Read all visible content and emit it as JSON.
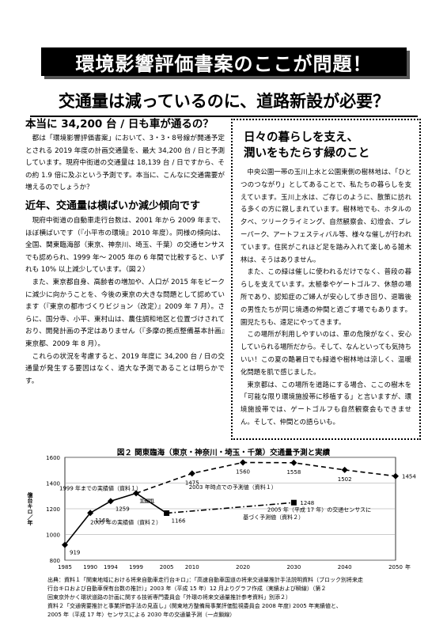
{
  "banner": "環境影響評価書案のここが問題！",
  "headline": "交通量は減っているのに、道路新設が必要？",
  "left": {
    "h1": "本当に 34,200 台 / 日も車が通るの？",
    "p1": "都は「環境影響評価書案」において、3・3・8号線が開通予定とされる 2019 年度の計画交通量を、最大 34,200 台 / 日と予測しています。現府中街道の交通量は 18,139 台 / 日ですから、その約 1.9 倍に及ぶという予測です。本当に、こんなに交通需要が増えるのでしょうか？",
    "h2": "近年、交通量は横ばいか減少傾向です",
    "p2": "現府中街道の自動車走行台数は、2001 年から 2009 年まで、ほぼ横ばいです（『小平市の環境』2010 年度）。同様の傾向は、全国、関東臨海部（東京、神奈川、埼玉、千葉）の交通センサスでも認められ、1999 年〜 2005 年の 6 年間で比較すると、いずれも 10% 以上減少しています。（図２）",
    "p3": "また、東京都自身、高齢者の増加や、人口が 2015 年をピークに減少に向かうことを、今後の東京の大きな問題として認めています（『東京の都市づくりビジョン（改定）』2009 年 7 月）。さらに、国分寺、小平、東村山は、農住調和地区と位置づけされており、開発計画の予定はありません（『多摩の拠点整備基本計画』東京都、2009 年 8 月）。",
    "p4": "これらの状況を考慮すると、2019 年度に 34,200 台 / 日の交通量が発生する要因はなく、過大な予測であることは明らかです。"
  },
  "right": {
    "h1": "日々の暮らしを支え、",
    "h2": "潤いをもたらす緑のこと",
    "p1": "中央公園一帯の玉川上水と公園東側の樹林地は、「ひとつのつながり」としてあることで、私たちの暮らしを支えています。玉川上水は、ご存じのように、散策に訪れる多くの方に親しまれています。樹林地でも、ホタルの夕べ、ツリークライミング、自然観察会、幻燈会、プレーパーク、アートフェスティバル等、様々な催しが行われています。住民がこれほど足を踏み入れて楽しめる雑木林は、そうはありません。",
    "p2": "また、この緑は催しに使われるだけでなく、普段の暮らしを支えています。太極拳やゲートゴルフ、休憩の場所であり、認知症のご婦人が安心して歩き回り、退職後の男性たちが同じ境遇の仲間と過ごす場でもあります。園児たちも、遠足にやってきます。",
    "p3": "この場所が利用しやすいのは、車の危険がなく、安心していられる場所だから。そして、なんといっても気持ちいい！この夏の酷暑日でも緑道や樹林地は涼しく、温暖化問題を肌で感じました。",
    "p4": "東京都は、この場所を道路にする場合、ここの樹木を「可能な限り環境施設帯に移植する」と言いますが、環境施設帯では、ゲートゴルフも自然観察会もできません。そして、仲間との語らいも。"
  },
  "chart_data": {
    "type": "line",
    "title": "図２ 関東臨海（東京・神奈川・埼玉・千葉）交通量予測と実績",
    "ylabel": "億台キロ／年",
    "xunit": "年",
    "ylim": [
      800,
      1600
    ],
    "xlim": [
      1985,
      2050
    ],
    "xticks": [
      1985,
      1990,
      1994,
      1999,
      2005,
      2010,
      2020,
      2030,
      2040,
      2050
    ],
    "yticks": [
      800,
      1000,
      1200,
      1400,
      1600
    ],
    "series": [
      {
        "x": [
          1985,
          1990,
          1994,
          1999
        ],
        "y": [
          919,
          1168,
          1259,
          1321
        ],
        "labels": [
          "919",
          "1168",
          "1259",
          "1321"
        ],
        "style": "solid",
        "marker": "diamond",
        "color": "#000000"
      },
      {
        "x": [
          1999,
          2005
        ],
        "y": [
          1321,
          1166
        ],
        "labels": [
          "",
          "1166"
        ],
        "style": "solid",
        "marker": "square",
        "color": "#000000"
      },
      {
        "x": [
          1999,
          2010,
          2020,
          2030,
          2040,
          2050
        ],
        "y": [
          1321,
          1475,
          1560,
          1558,
          1502,
          1454
        ],
        "labels": [
          "",
          "1475",
          "1560",
          "1558",
          "1502",
          "1454"
        ],
        "style": "dashed",
        "marker": "diamond",
        "color": "#000000"
      },
      {
        "x": [
          2005,
          2030
        ],
        "y": [
          1166,
          1248
        ],
        "labels": [
          "",
          "1248"
        ],
        "style": "dashdot",
        "marker": "square",
        "color": "#000000"
      }
    ],
    "annotations": [
      {
        "text": "1999 年までの実績値（資料１）",
        "x": 1992,
        "y": 1345
      },
      {
        "text": "2003 年時点での予測値（資料１）",
        "x": 2018,
        "y": 1355
      },
      {
        "text": "2005 年の実績値（資料２）",
        "x": 1997,
        "y": 1080
      },
      {
        "text": "2005 年（平成 17 年）の交通センサスに",
        "x": 2035,
        "y": 1180
      },
      {
        "text": "基づく予測値（資料２）",
        "x": 2026,
        "y": 1120
      }
    ]
  },
  "notes": [
    "出典：資料１「関東地域における将来自動車走行台キロ」：「高速自動車国道の将来交通量推計手法説明資料（ブロック別将来走",
    "行台キロおよび自動車保有台数の推計）」2003 年（平成 15 年）12 月よりグラフ作成（実績および瞬線）（第２",
    "回東京外かく環状道路の計画に関する技術専門委員会「外環の将来交通量推計参考資料」別添２）",
    "資料２「交通需要推計と事業評価手法の見直し」(関東地方整備局事業評価監視委員会 2008 年度) 2005 年実績値と、",
    "2005 年（平成 17 年）センサスによる 2030 年の交通量予測（一点鎖線）"
  ]
}
